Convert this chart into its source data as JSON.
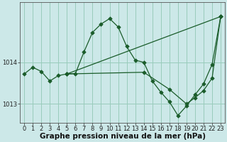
{
  "xlabel": "Graphe pression niveau de la mer (hPa)",
  "background_color": "#cce8e8",
  "grid_color": "#99ccbb",
  "line_color": "#1a5c2a",
  "yticks": [
    1013,
    1014
  ],
  "ylim": [
    1012.55,
    1015.45
  ],
  "xlim": [
    -0.5,
    23.5
  ],
  "xtick_labels": [
    "0",
    "1",
    "2",
    "3",
    "4",
    "5",
    "6",
    "7",
    "8",
    "9",
    "10",
    "11",
    "12",
    "13",
    "14",
    "15",
    "16",
    "17",
    "18",
    "19",
    "20",
    "21",
    "22",
    "23"
  ],
  "line1_x": [
    0,
    1,
    2,
    3,
    4,
    5,
    6,
    7,
    8,
    9,
    10,
    11,
    12,
    13,
    14,
    15,
    16,
    17,
    18,
    19,
    20,
    21,
    22,
    23
  ],
  "line1_y": [
    1013.72,
    1013.88,
    1013.78,
    1013.55,
    1013.68,
    1013.72,
    1013.73,
    1014.25,
    1014.72,
    1014.92,
    1015.05,
    1014.85,
    1014.38,
    1014.05,
    1014.0,
    1013.55,
    1013.28,
    1013.05,
    1012.72,
    1012.95,
    1013.22,
    1013.48,
    1013.95,
    1015.1
  ],
  "line2_x": [
    5,
    23
  ],
  "line2_y": [
    1013.72,
    1015.1
  ],
  "line3_x": [
    5,
    14,
    17,
    19,
    20,
    21,
    22,
    23
  ],
  "line3_y": [
    1013.72,
    1013.76,
    1013.35,
    1013.0,
    1013.15,
    1013.32,
    1013.62,
    1015.1
  ],
  "xlabel_fontsize": 7.5,
  "tick_fontsize": 6.0
}
